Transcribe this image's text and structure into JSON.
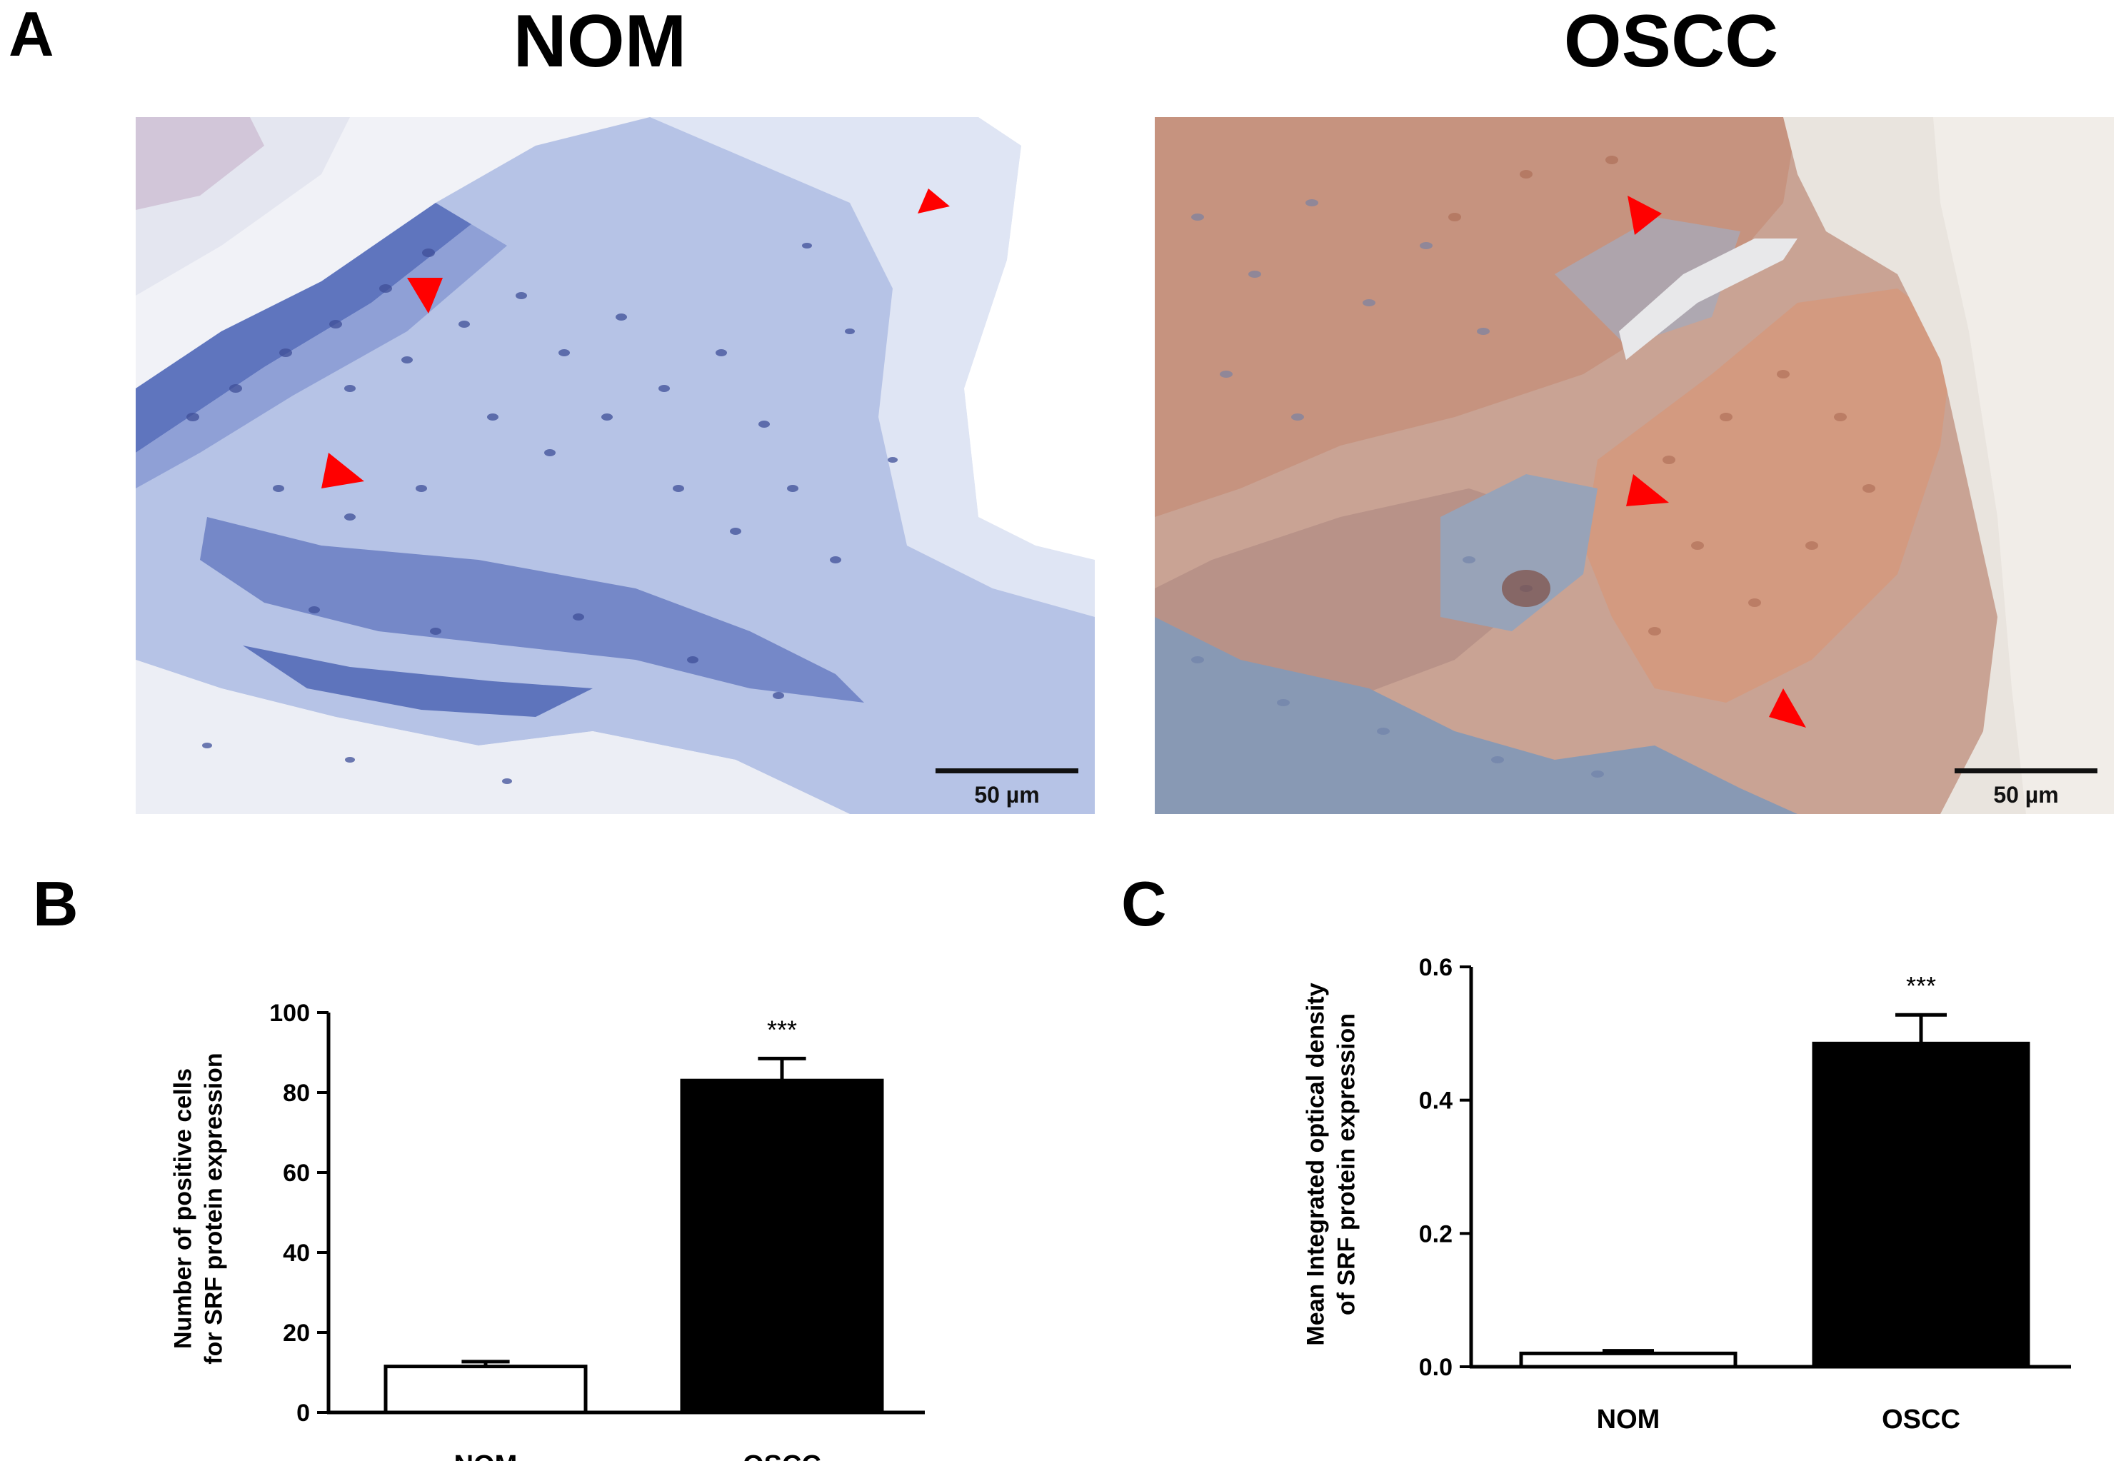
{
  "panel_labels": {
    "a": "A",
    "b": "B",
    "c": "C"
  },
  "images": [
    {
      "title": "NOM",
      "scale_bar": "50 µm",
      "tissue": "normal oral mucosa",
      "palette": "blue"
    },
    {
      "title": "OSCC",
      "scale_bar": "50 µm",
      "tissue": "oral squamous cell carcinoma",
      "palette": "brown"
    }
  ],
  "colors": {
    "arrowhead": "#ff0000",
    "bar_oscc": "#000000",
    "bar_nom": "#ffffff",
    "ihc_blue": "#7f92cf",
    "ihc_brown": "#c98d77"
  },
  "chart_data": [
    {
      "type": "bar",
      "panel": "B",
      "categories": [
        "NOM",
        "OSCC"
      ],
      "values": [
        11.5,
        83
      ],
      "errors": [
        1.2,
        5.5
      ],
      "bar_colors": [
        "#ffffff",
        "#000000"
      ],
      "ylabel": "Number of positive cells for SRF protein expression",
      "ylabel_lines": [
        "Number of positive cells",
        "for SRF protein expression"
      ],
      "ylim": [
        0,
        100
      ],
      "yticks": [
        0,
        20,
        40,
        60,
        80,
        100
      ],
      "ytick_labels": [
        "0",
        "20",
        "40",
        "60",
        "80",
        "100"
      ],
      "significance": [
        "",
        "***"
      ],
      "grid": false
    },
    {
      "type": "bar",
      "panel": "C",
      "categories": [
        "NOM",
        "OSCC"
      ],
      "values": [
        0.02,
        0.485
      ],
      "errors": [
        0.004,
        0.043
      ],
      "bar_colors": [
        "#ffffff",
        "#000000"
      ],
      "ylabel": "Mean Integrated optical density of SRF protein expression",
      "ylabel_lines": [
        "Mean Integrated optical density",
        "of SRF protein expression"
      ],
      "ylim": [
        0,
        0.6
      ],
      "yticks": [
        0,
        0.2,
        0.4,
        0.6
      ],
      "ytick_labels": [
        "0.0",
        "0.2",
        "0.4",
        "0.6"
      ],
      "significance": [
        "",
        "***"
      ],
      "grid": false
    }
  ]
}
